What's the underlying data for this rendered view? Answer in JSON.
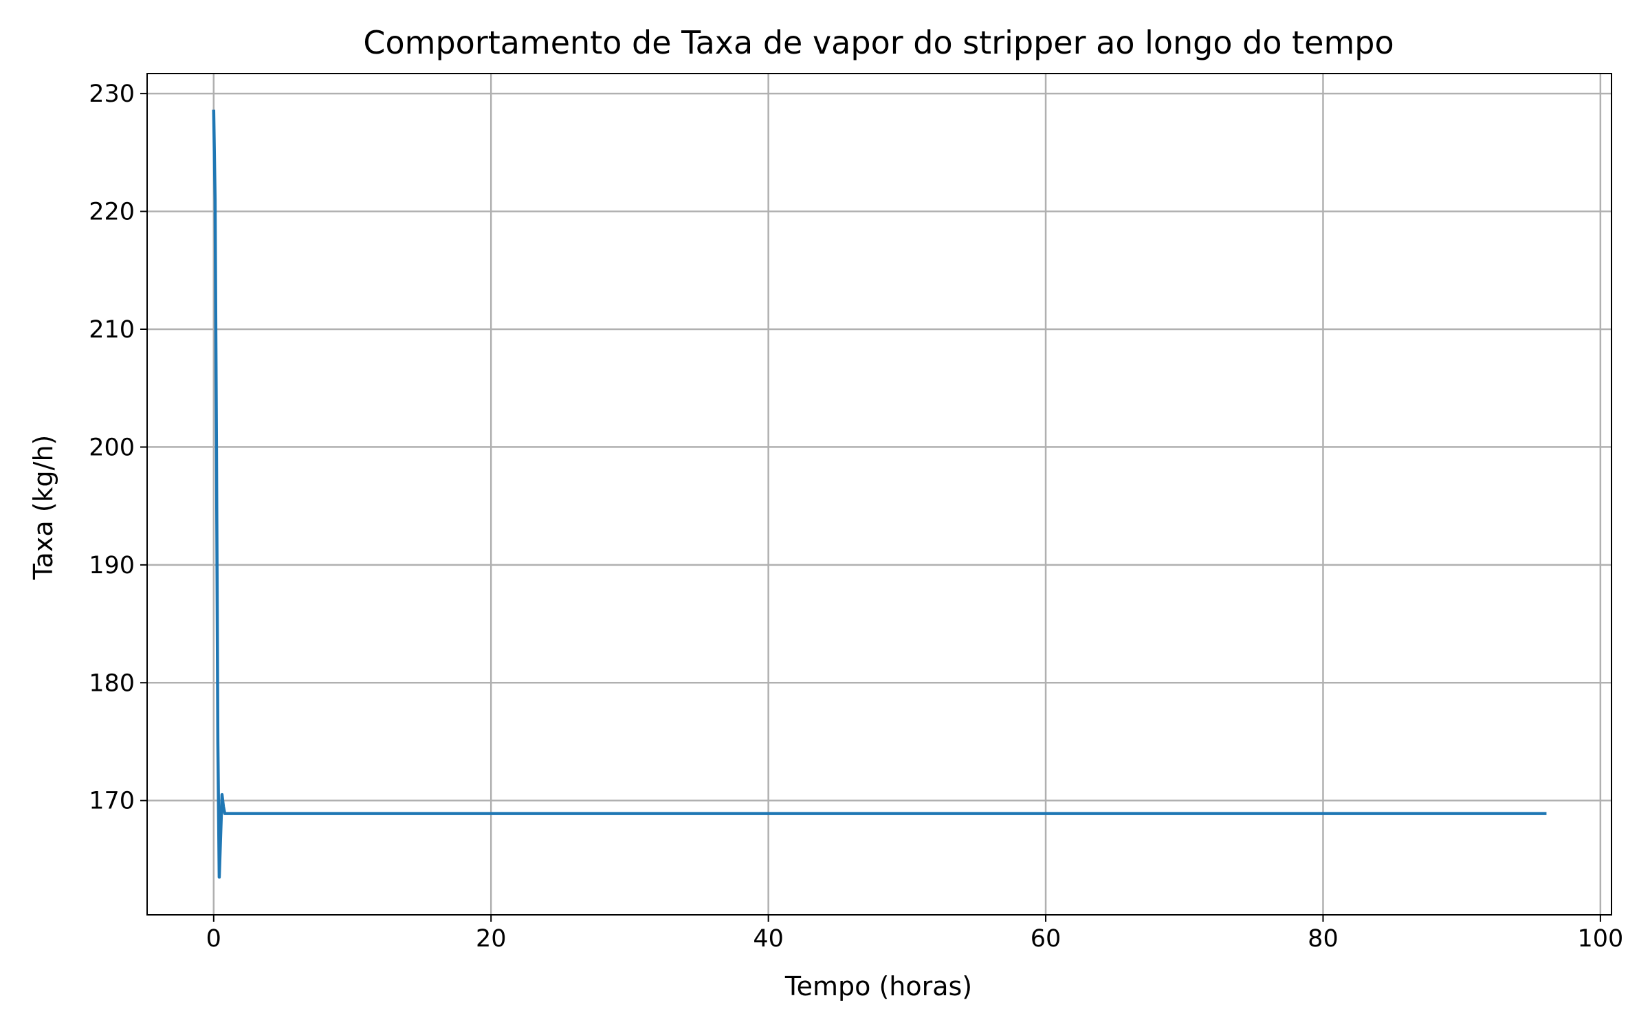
{
  "chart_data": {
    "type": "line",
    "title": "Comportamento de Taxa de vapor do stripper ao longo do tempo",
    "xlabel": "Tempo (horas)",
    "ylabel": "Taxa (kg/h)",
    "xlim": [
      -4.8,
      100.8
    ],
    "ylim": [
      160.3,
      231.7
    ],
    "xticks": [
      0,
      20,
      40,
      60,
      80,
      100
    ],
    "yticks": [
      170,
      180,
      190,
      200,
      210,
      220,
      230
    ],
    "grid": true,
    "legend": "none",
    "series": [
      {
        "color": "#1f77b4",
        "x": [
          0,
          0.1,
          0.2,
          0.3,
          0.4,
          0.5,
          0.6,
          0.7,
          0.8,
          0.9,
          1.0,
          2,
          10,
          20,
          40,
          60,
          80,
          96
        ],
        "y": [
          228.5,
          221,
          200,
          175,
          163.5,
          167,
          170.5,
          169.5,
          168.9,
          168.9,
          168.9,
          168.9,
          168.9,
          168.9,
          168.9,
          168.9,
          168.9,
          168.9
        ]
      }
    ]
  }
}
